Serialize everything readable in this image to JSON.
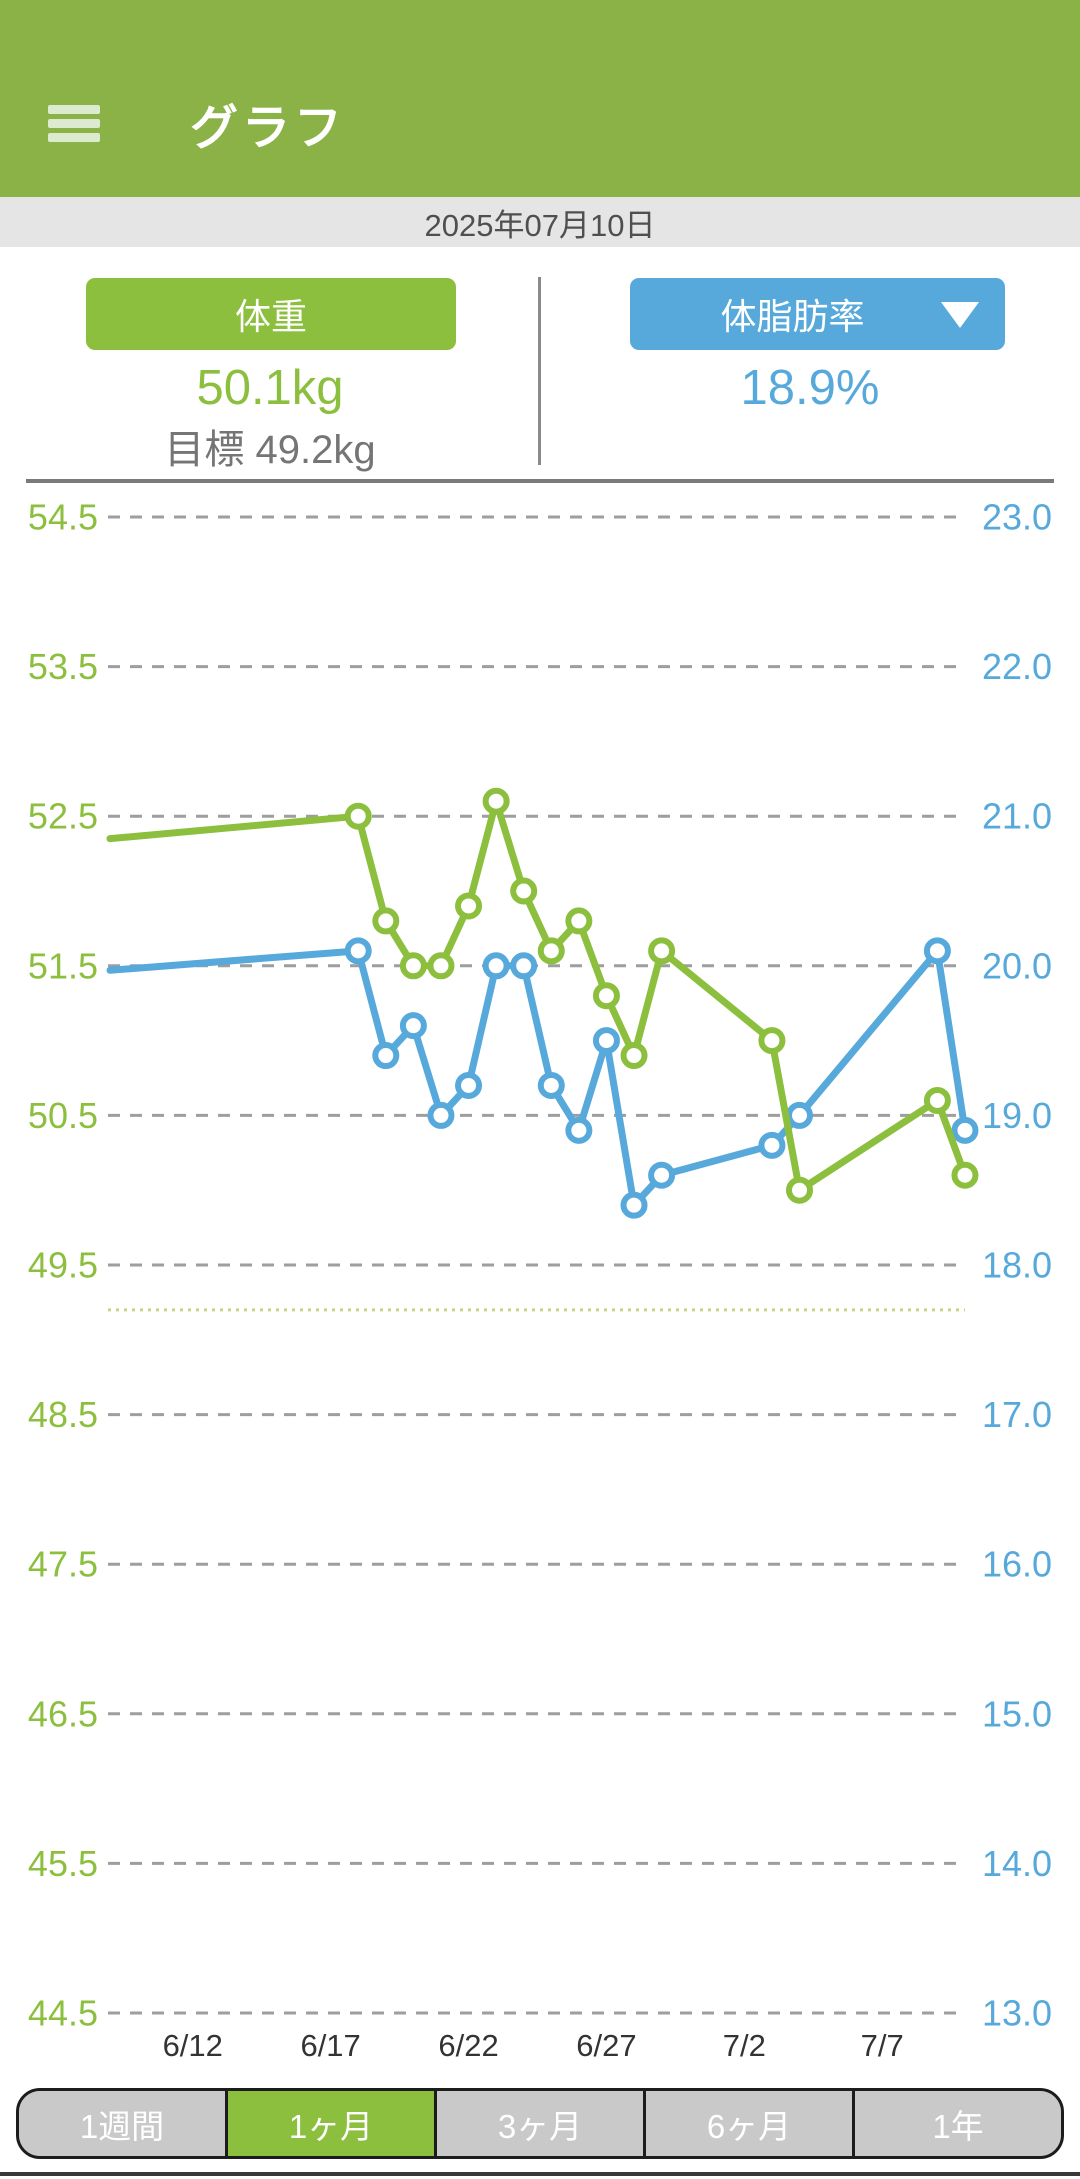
{
  "header": {
    "title": "グラフ"
  },
  "date_bar": {
    "date": "2025年07月10日"
  },
  "metrics": {
    "weight": {
      "label": "体重",
      "value": "50.1kg",
      "goal_label": "目標 49.2kg"
    },
    "body_fat": {
      "label": "体脂肪率",
      "value": "18.9%"
    }
  },
  "colors": {
    "header_green": "#8ab246",
    "accent_green": "#8cbf3e",
    "accent_blue": "#57a9db",
    "gridline_gray": "#9e9e9e",
    "goal_line_green": "#c6d77d",
    "x_label_dark": "#333333"
  },
  "chart_data": {
    "type": "line",
    "title": "",
    "left_axis": {
      "min": 44.5,
      "max": 54.5,
      "step": 1.0,
      "color": "#8cbf3e"
    },
    "right_axis": {
      "min": 13.0,
      "max": 23.0,
      "step": 1.0,
      "color": "#57a9db"
    },
    "grid": "dashed-horizontal",
    "legend": "none",
    "x_window": {
      "start_day": 0,
      "end_day": 31,
      "note": "1-month window ending 7/10"
    },
    "x_ticks": [
      {
        "label": "6/12",
        "day": 3
      },
      {
        "label": "6/17",
        "day": 8
      },
      {
        "label": "6/22",
        "day": 13
      },
      {
        "label": "6/27",
        "day": 18
      },
      {
        "label": "7/2",
        "day": 23
      },
      {
        "label": "7/7",
        "day": 28
      }
    ],
    "goal_line": {
      "axis": "left",
      "value": 49.2
    },
    "series": [
      {
        "name": "体脂肪率",
        "axis": "right",
        "color": "#57a9db",
        "edge_start": {
          "day": 0,
          "value": 19.97
        },
        "points": [
          {
            "date": "6/18",
            "day": 9,
            "value": 20.1
          },
          {
            "date": "6/19",
            "day": 10,
            "value": 19.4
          },
          {
            "date": "6/20",
            "day": 11,
            "value": 19.6
          },
          {
            "date": "6/21",
            "day": 12,
            "value": 19.0
          },
          {
            "date": "6/22",
            "day": 13,
            "value": 19.2
          },
          {
            "date": "6/23",
            "day": 14,
            "value": 20.0
          },
          {
            "date": "6/24",
            "day": 15,
            "value": 20.0
          },
          {
            "date": "6/25",
            "day": 16,
            "value": 19.2
          },
          {
            "date": "6/26",
            "day": 17,
            "value": 18.9
          },
          {
            "date": "6/27",
            "day": 18,
            "value": 19.5
          },
          {
            "date": "6/28",
            "day": 19,
            "value": 18.4
          },
          {
            "date": "6/29",
            "day": 20,
            "value": 18.6
          },
          {
            "date": "7/3",
            "day": 24,
            "value": 18.8
          },
          {
            "date": "7/4",
            "day": 25,
            "value": 19.0
          },
          {
            "date": "7/9",
            "day": 30,
            "value": 20.1
          },
          {
            "date": "7/10",
            "day": 31,
            "value": 18.9
          }
        ]
      },
      {
        "name": "体重",
        "axis": "left",
        "color": "#8cbf3e",
        "edge_start": {
          "day": 0,
          "value": 52.35
        },
        "points": [
          {
            "date": "6/18",
            "day": 9,
            "value": 52.5
          },
          {
            "date": "6/19",
            "day": 10,
            "value": 51.8
          },
          {
            "date": "6/20",
            "day": 11,
            "value": 51.5
          },
          {
            "date": "6/21",
            "day": 12,
            "value": 51.5
          },
          {
            "date": "6/22",
            "day": 13,
            "value": 51.9
          },
          {
            "date": "6/23",
            "day": 14,
            "value": 52.6
          },
          {
            "date": "6/24",
            "day": 15,
            "value": 52.0
          },
          {
            "date": "6/25",
            "day": 16,
            "value": 51.6
          },
          {
            "date": "6/26",
            "day": 17,
            "value": 51.8
          },
          {
            "date": "6/27",
            "day": 18,
            "value": 51.3
          },
          {
            "date": "6/28",
            "day": 19,
            "value": 50.9
          },
          {
            "date": "6/29",
            "day": 20,
            "value": 51.6
          },
          {
            "date": "7/3",
            "day": 24,
            "value": 51.0
          },
          {
            "date": "7/4",
            "day": 25,
            "value": 50.0
          },
          {
            "date": "7/9",
            "day": 30,
            "value": 50.6
          },
          {
            "date": "7/10",
            "day": 31,
            "value": 50.1
          }
        ]
      }
    ]
  },
  "period_tabs": [
    {
      "label": "1週間",
      "selected": false
    },
    {
      "label": "1ヶ月",
      "selected": true
    },
    {
      "label": "3ヶ月",
      "selected": false
    },
    {
      "label": "6ヶ月",
      "selected": false
    },
    {
      "label": "1年",
      "selected": false
    }
  ]
}
